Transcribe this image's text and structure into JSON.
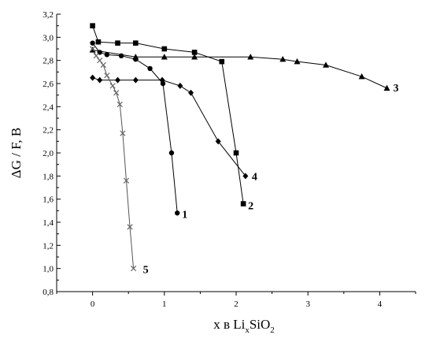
{
  "chart_data": {
    "type": "line",
    "ylabel": "ΔG / F, B",
    "xlabel": {
      "main": "x в Li",
      "sub1": "x",
      "mid": "SiO",
      "sub2": "2"
    },
    "xlim": [
      -0.5,
      4.5
    ],
    "ylim": [
      0.8,
      3.2
    ],
    "x_ticks": [
      0,
      1,
      2,
      3,
      4
    ],
    "x_tick_labels": [
      "0",
      "1",
      "2",
      "3",
      "4"
    ],
    "y_ticks": [
      0.8,
      1.0,
      1.2,
      1.4,
      1.6,
      1.8,
      2.0,
      2.2,
      2.4,
      2.6,
      2.8,
      3.0,
      3.2
    ],
    "y_tick_labels": [
      "0,8",
      "1,0",
      "1,2",
      "1,4",
      "1,6",
      "1,8",
      "2,0",
      "2,2",
      "2,4",
      "2,6",
      "2,8",
      "3,0",
      "3,2"
    ],
    "grid": false,
    "series": [
      {
        "name": "1",
        "marker": "circle",
        "x": [
          0.0,
          0.1,
          0.2,
          0.4,
          0.6,
          0.8,
          0.98,
          1.1,
          1.18
        ],
        "y": [
          2.95,
          2.87,
          2.85,
          2.84,
          2.81,
          2.73,
          2.6,
          2.0,
          1.48
        ]
      },
      {
        "name": "2",
        "marker": "square",
        "x": [
          0.0,
          0.08,
          0.35,
          0.6,
          1.0,
          1.42,
          1.8,
          2.0,
          2.1
        ],
        "y": [
          3.1,
          2.96,
          2.95,
          2.95,
          2.9,
          2.87,
          2.79,
          2.0,
          1.56
        ]
      },
      {
        "name": "3",
        "marker": "triangle",
        "x": [
          0.0,
          0.6,
          1.0,
          1.42,
          2.2,
          2.65,
          2.85,
          3.25,
          3.75,
          4.1
        ],
        "y": [
          2.89,
          2.83,
          2.83,
          2.83,
          2.83,
          2.81,
          2.79,
          2.76,
          2.66,
          2.56
        ]
      },
      {
        "name": "4",
        "marker": "diamond",
        "x": [
          0.0,
          0.1,
          0.35,
          0.6,
          0.97,
          1.22,
          1.37,
          1.75,
          2.13
        ],
        "y": [
          2.65,
          2.63,
          2.63,
          2.63,
          2.63,
          2.58,
          2.52,
          2.1,
          1.8
        ]
      },
      {
        "name": "5",
        "marker": "x",
        "x": [
          0.0,
          0.05,
          0.1,
          0.15,
          0.2,
          0.28,
          0.33,
          0.38,
          0.42,
          0.47,
          0.52,
          0.57
        ],
        "y": [
          2.9,
          2.84,
          2.8,
          2.76,
          2.67,
          2.58,
          2.52,
          2.42,
          2.17,
          1.76,
          1.36,
          1.0
        ]
      }
    ]
  }
}
